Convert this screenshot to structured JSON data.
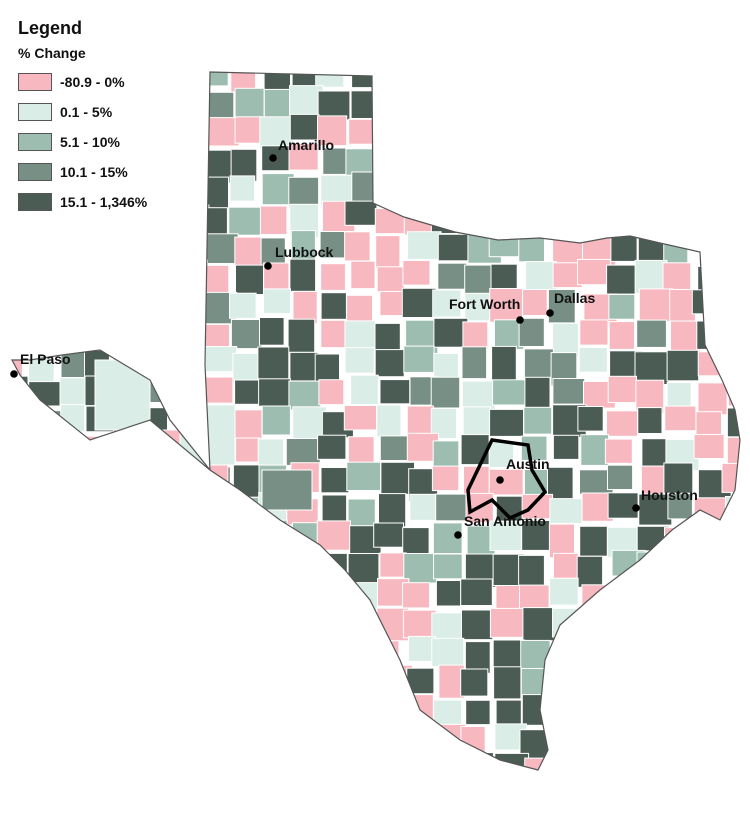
{
  "legend": {
    "title": "Legend",
    "subtitle": "% Change",
    "items": [
      {
        "label": "-80.9 - 0%",
        "color": "#f8b8bf"
      },
      {
        "label": "0.1 - 5%",
        "color": "#daede6"
      },
      {
        "label": "5.1 - 10%",
        "color": "#9cbdb0"
      },
      {
        "label": "10.1 - 15%",
        "color": "#778f84"
      },
      {
        "label": "15.1 - 1,346%",
        "color": "#4b5c55"
      }
    ]
  },
  "cities": [
    {
      "name": "Amarillo"
    },
    {
      "name": "Lubbock"
    },
    {
      "name": "El Paso"
    },
    {
      "name": "Fort Worth"
    },
    {
      "name": "Dallas"
    },
    {
      "name": "Austin"
    },
    {
      "name": "San Antonio"
    },
    {
      "name": "Houston"
    }
  ],
  "colors": {
    "county_border": "#ffffff",
    "state_outline": "#555555",
    "highlight_outline": "#000000",
    "city_dot": "#000000"
  }
}
